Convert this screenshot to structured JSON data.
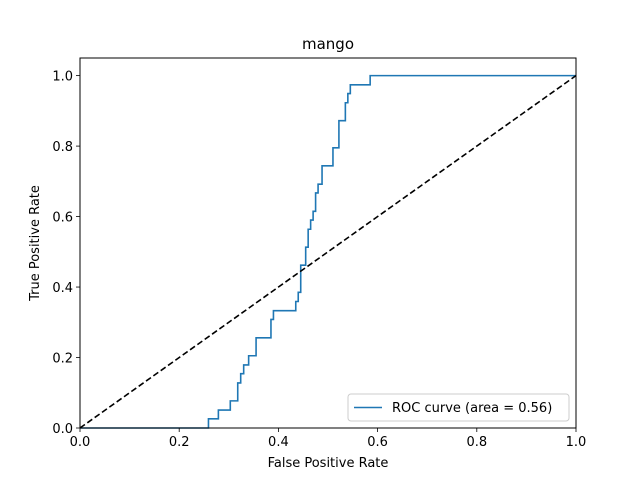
{
  "chart_data": {
    "type": "line",
    "title": "mango",
    "xlabel": "False Positive Rate",
    "ylabel": "True Positive Rate",
    "xlim": [
      0.0,
      1.0
    ],
    "ylim": [
      0.0,
      1.05
    ],
    "xticks": [
      "0.0",
      "0.2",
      "0.4",
      "0.6",
      "0.8",
      "1.0"
    ],
    "yticks": [
      "0.0",
      "0.2",
      "0.4",
      "0.6",
      "0.8",
      "1.0"
    ],
    "grid": false,
    "legend_position": "bottom-right",
    "series": [
      {
        "name": "ROC curve (area = 0.56)",
        "color": "#1f77b4",
        "style": "solid",
        "x": [
          0.0,
          0.259,
          0.259,
          0.279,
          0.279,
          0.303,
          0.303,
          0.318,
          0.318,
          0.324,
          0.324,
          0.33,
          0.33,
          0.34,
          0.34,
          0.355,
          0.355,
          0.385,
          0.385,
          0.39,
          0.39,
          0.402,
          0.402,
          0.435,
          0.435,
          0.44,
          0.44,
          0.445,
          0.445,
          0.455,
          0.455,
          0.46,
          0.46,
          0.465,
          0.465,
          0.47,
          0.47,
          0.475,
          0.475,
          0.48,
          0.48,
          0.488,
          0.488,
          0.496,
          0.496,
          0.51,
          0.51,
          0.522,
          0.522,
          0.535,
          0.535,
          0.54,
          0.54,
          0.545,
          0.545,
          0.585,
          0.585,
          1.0
        ],
        "y": [
          0.0,
          0.0,
          0.026,
          0.026,
          0.051,
          0.051,
          0.077,
          0.077,
          0.128,
          0.128,
          0.154,
          0.154,
          0.179,
          0.179,
          0.205,
          0.205,
          0.256,
          0.256,
          0.308,
          0.308,
          0.333,
          0.333,
          0.333,
          0.333,
          0.359,
          0.359,
          0.385,
          0.385,
          0.462,
          0.462,
          0.513,
          0.513,
          0.564,
          0.564,
          0.59,
          0.59,
          0.615,
          0.615,
          0.667,
          0.667,
          0.692,
          0.692,
          0.744,
          0.744,
          0.744,
          0.744,
          0.795,
          0.795,
          0.872,
          0.872,
          0.923,
          0.923,
          0.949,
          0.949,
          0.974,
          0.974,
          1.0,
          1.0
        ]
      },
      {
        "name": "",
        "color": "#000000",
        "style": "dashed",
        "x": [
          0.0,
          1.0
        ],
        "y": [
          0.0,
          1.0
        ]
      }
    ]
  }
}
